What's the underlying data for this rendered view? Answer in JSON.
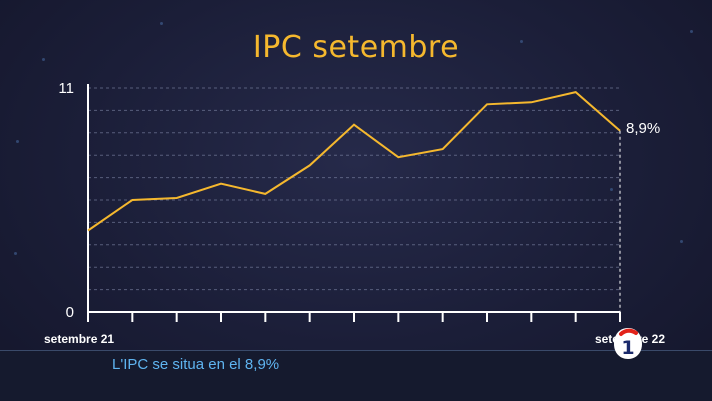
{
  "chart_data": {
    "type": "line",
    "title": "IPC setembre",
    "xlabel": "",
    "ylabel": "",
    "ylim": [
      0,
      11
    ],
    "y_tick_labels": [
      "0",
      "11"
    ],
    "x_tick_labels": [
      "setembre 21",
      "setembre 22"
    ],
    "grid": "horizontal dashed",
    "series": [
      {
        "values": [
          4.0,
          5.5,
          5.6,
          6.3,
          5.8,
          7.2,
          9.2,
          7.6,
          8.0,
          10.2,
          10.3,
          10.8,
          8.9
        ]
      }
    ],
    "end_label": "8,9%",
    "colors": {
      "line": "#f5b82e",
      "title": "#f5b82e",
      "axis": "#ffffff",
      "caption": "#5fb4f0"
    }
  },
  "caption": "L'IPC se situa en el 8,9%",
  "logo": {
    "icon": "tve-1-logo",
    "text": "1"
  }
}
